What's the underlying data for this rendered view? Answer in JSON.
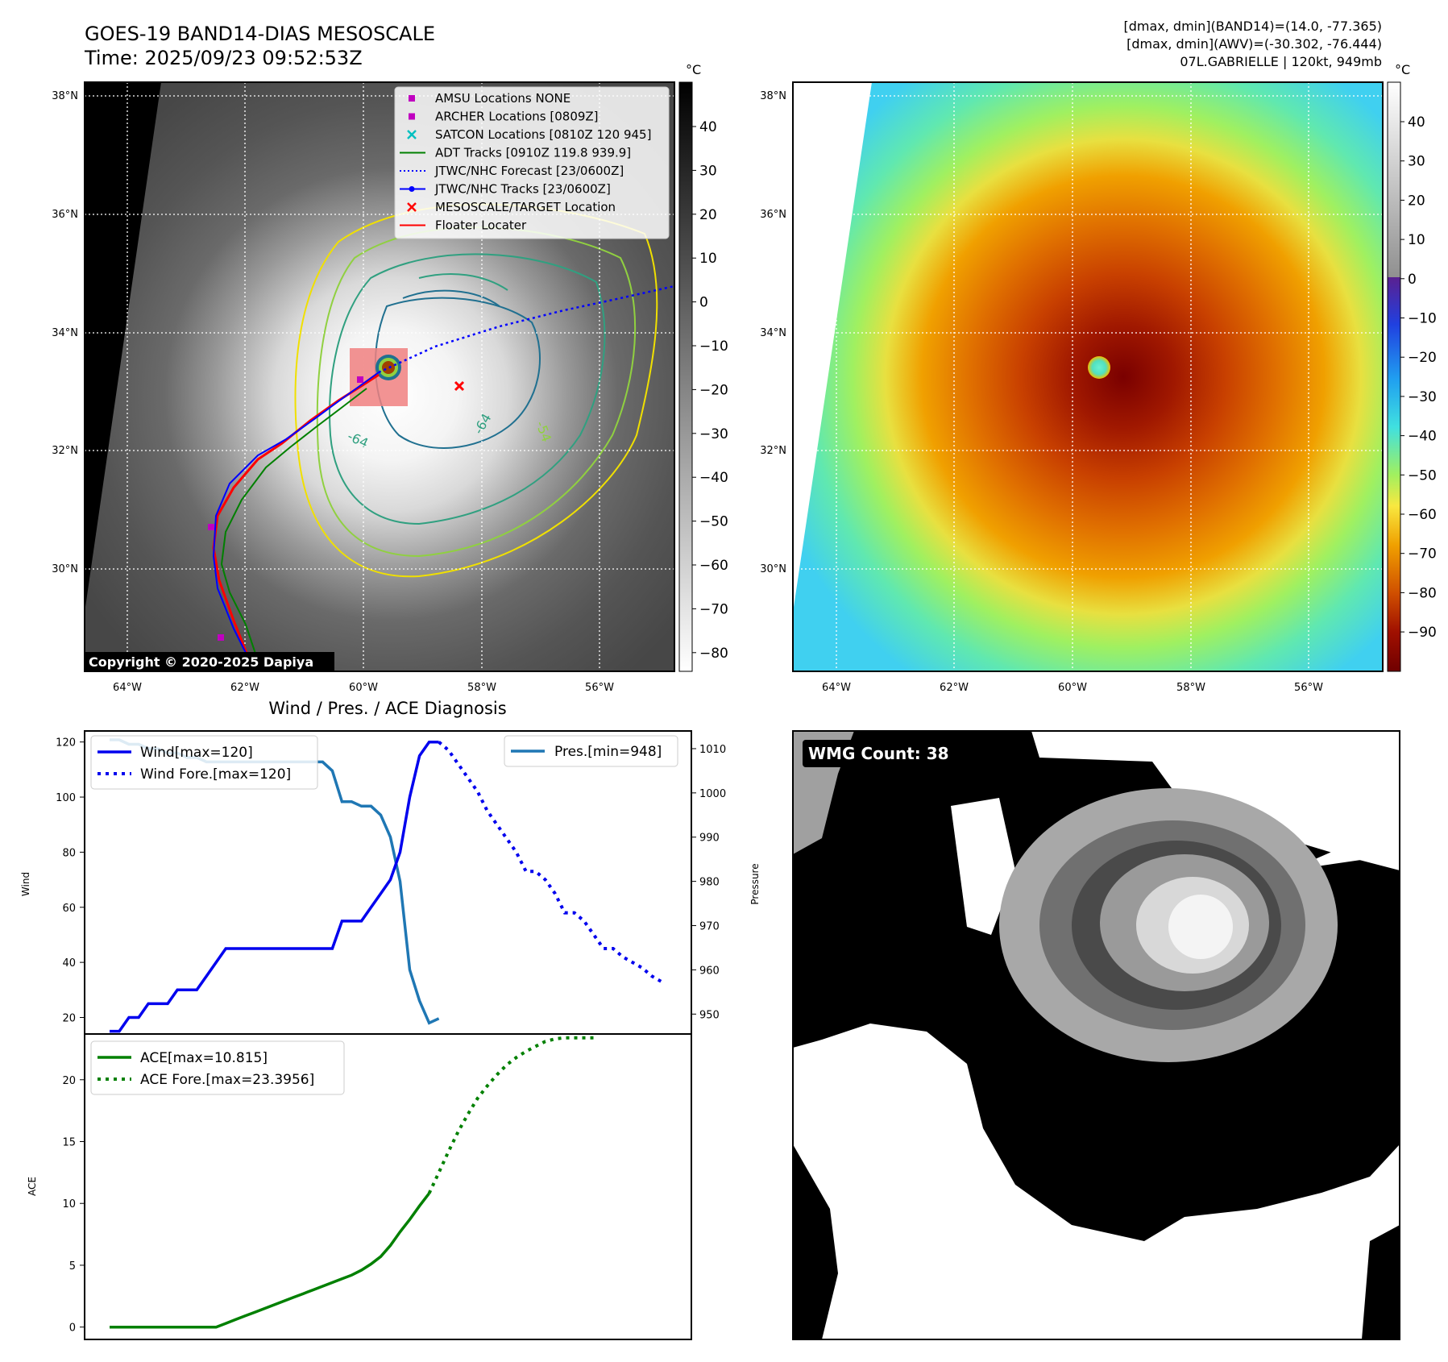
{
  "header": {
    "title_line1": "GOES-19 BAND14-DIAS MESOSCALE",
    "title_line2": "Time: 2025/09/23 09:52:53Z",
    "info_line1": "[dmax, dmin](BAND14)=(14.0, -77.365)",
    "info_line2": "[dmax, dmin](AWV)=(-30.302, -76.444)",
    "info_line3": "07L.GABRIELLE | 120kt, 949mb",
    "unit_left": "°C",
    "unit_right": "°C"
  },
  "copyright": "Copyright © 2020-2025 Dapiya",
  "map_axes": {
    "lat_ticks": [
      "38°N",
      "36°N",
      "34°N",
      "32°N",
      "30°N"
    ],
    "lon_ticks": [
      "64°W",
      "62°W",
      "60°W",
      "58°W",
      "56°W"
    ]
  },
  "legend": [
    {
      "label": "AMSU Locations NONE",
      "color": "#c000c0",
      "kind": "square"
    },
    {
      "label": "ARCHER Locations [0809Z]",
      "color": "#c000c0",
      "kind": "square"
    },
    {
      "label": "SATCON Locations [0810Z 120 945]",
      "color": "#00c0c0",
      "kind": "x"
    },
    {
      "label": "ADT Tracks [0910Z 119.8 939.9]",
      "color": "#008000",
      "kind": "line"
    },
    {
      "label": "JTWC/NHC Forecast [23/0600Z]",
      "color": "#0000ff",
      "kind": "dotted"
    },
    {
      "label": "JTWC/NHC Tracks [23/0600Z]",
      "color": "#0000ff",
      "kind": "dotline"
    },
    {
      "label": "MESOSCALE/TARGET Location",
      "color": "#ff0000",
      "kind": "x"
    },
    {
      "label": "Floater Locater",
      "color": "#ff0000",
      "kind": "line"
    }
  ],
  "contour_labels": [
    "-64",
    "-64",
    "-54"
  ],
  "colorbar_left": {
    "ticks": [
      "40",
      "30",
      "20",
      "10",
      "0",
      "−10",
      "−20",
      "−30",
      "−40",
      "−50",
      "−60",
      "−70",
      "−80"
    ]
  },
  "colorbar_right": {
    "ticks": [
      "40",
      "30",
      "20",
      "10",
      "0",
      "−10",
      "−20",
      "−30",
      "−40",
      "−50",
      "−60",
      "−70",
      "−80",
      "−90"
    ]
  },
  "wmg": {
    "label": "WMG Count: 38"
  },
  "chart_data": [
    {
      "type": "line",
      "title": "Wind / Pres. / ACE Diagnosis",
      "ylabel": "Wind",
      "ylim": [
        14,
        124
      ],
      "yticks": [
        "120",
        "100",
        "80",
        "60",
        "40",
        "20"
      ],
      "legend_entries": [
        "Wind[max=120]",
        "Wind Fore.[max=120]"
      ],
      "series": [
        {
          "name": "Wind[max=120]",
          "values": [
            15,
            15,
            20,
            20,
            25,
            25,
            25,
            30,
            30,
            30,
            35,
            40,
            45,
            45,
            45,
            45,
            45,
            45,
            45,
            45,
            45,
            45,
            45,
            45,
            55,
            55,
            55,
            60,
            65,
            70,
            80,
            100,
            115,
            120,
            120
          ]
        },
        {
          "name": "Wind Fore.[max=120]",
          "values": [
            120,
            117,
            112,
            107,
            102,
            95,
            90,
            85,
            80,
            73,
            73,
            70,
            65,
            58,
            58,
            55,
            50,
            45,
            45,
            42,
            40,
            38,
            35,
            33
          ]
        }
      ]
    },
    {
      "type": "line",
      "ylabel": "Pressure",
      "ylim": [
        945.5,
        1014
      ],
      "yticks": [
        "1010",
        "1000",
        "990",
        "980",
        "970",
        "960",
        "950"
      ],
      "legend_entries": [
        "Pres.[min=948]"
      ],
      "series": [
        {
          "name": "Pres.[min=948]",
          "values": [
            1012,
            1012,
            1011,
            1011,
            1010,
            1010,
            1009,
            1009,
            1008,
            1008,
            1007,
            1007,
            1007,
            1007,
            1007,
            1007,
            1007,
            1007,
            1007,
            1007,
            1007,
            1007,
            1007,
            1005,
            998,
            998,
            997,
            997,
            995,
            990,
            980,
            960,
            953,
            948,
            949
          ]
        }
      ]
    },
    {
      "type": "line",
      "ylabel": "ACE",
      "ylim": [
        -1,
        23.7
      ],
      "yticks": [
        "20",
        "15",
        "10",
        "5",
        "0"
      ],
      "legend_entries": [
        "ACE[max=10.815]",
        "ACE Fore.[max=23.3956]"
      ],
      "series": [
        {
          "name": "ACE[max=10.815]",
          "values": [
            0,
            0,
            0,
            0,
            0,
            0,
            0,
            0,
            0,
            0,
            0,
            0,
            0.3,
            0.6,
            0.9,
            1.2,
            1.5,
            1.8,
            2.1,
            2.4,
            2.7,
            3.0,
            3.3,
            3.6,
            3.9,
            4.2,
            4.6,
            5.1,
            5.7,
            6.6,
            7.7,
            8.7,
            9.8,
            10.815
          ]
        },
        {
          "name": "ACE Fore.[max=23.3956]",
          "values": [
            10.815,
            12.5,
            14.2,
            15.8,
            17.2,
            18.5,
            19.5,
            20.4,
            21.2,
            21.8,
            22.3,
            22.7,
            23.1,
            23.3,
            23.3956,
            23.3956,
            23.3956,
            23.3956
          ]
        }
      ]
    }
  ]
}
